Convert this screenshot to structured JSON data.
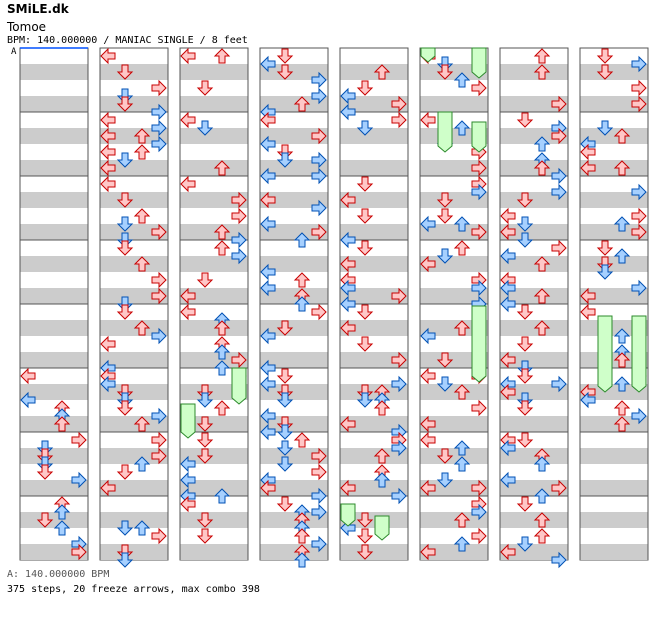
{
  "site": {
    "name": "SMiLE.dk"
  },
  "song": {
    "title": "Tomoe"
  },
  "chart_info": {
    "bpm_line": "BPM: 140.000000 / MANIAC SINGLE / 8 feet"
  },
  "markers": {
    "bpm_marker": "A"
  },
  "footer": {
    "bpm_legend": "A: 140.000000 BPM",
    "stats": "375 steps, 20 freeze arrows, max combo 398"
  },
  "chart_data": {
    "type": "other",
    "columns": 8,
    "measures_per_column": 8,
    "colors": {
      "quarter_fill": "#ffc7c7",
      "quarter_stroke": "#c80000",
      "eighth_fill": "#a6d0ff",
      "eighth_stroke": "#0050b4",
      "sixteenth_fill": "#ffbfff",
      "sixteenth_stroke": "#9b009b",
      "freeze_fill": "#cfffc9",
      "freeze_stroke": "#2c8a2c",
      "stripe": "#cccccc",
      "border": "#555555"
    }
  }
}
